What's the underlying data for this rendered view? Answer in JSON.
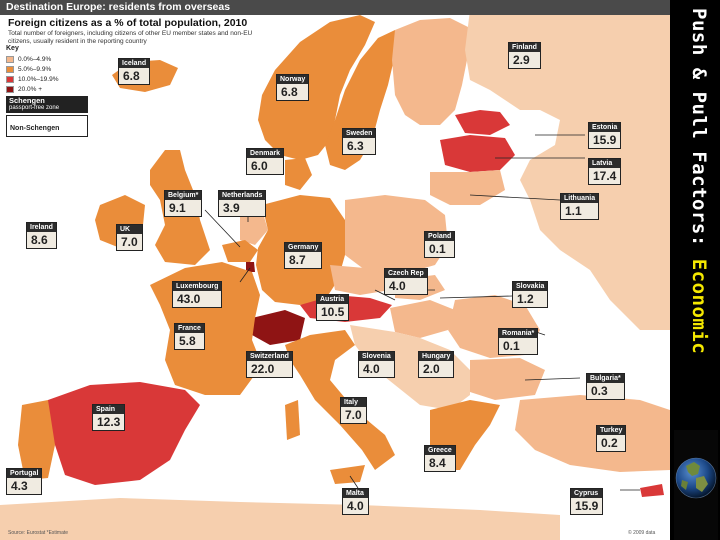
{
  "header": "Destination Europe: residents from overseas",
  "title": "Foreign citizens as a % of total population, 2010",
  "subtitle": "Total number of foreigners, including citizens of other EU member states and non-EU citizens, usually resident in the reporting country",
  "legend": {
    "title": "Key",
    "items": [
      {
        "label": "0.0%–4.9%",
        "color": "#f4b88d"
      },
      {
        "label": "5.0%–9.9%",
        "color": "#ea8d3a"
      },
      {
        "label": "10.0%–19.9%",
        "color": "#d93838"
      },
      {
        "label": "20.0% +",
        "color": "#8f1414"
      }
    ],
    "schengen_label": "Schengen",
    "schengen_sub": "passport-free zone",
    "non_schengen_label": "Non-Schengen"
  },
  "countries": {
    "finland": {
      "name": "Finland",
      "value": "2.9"
    },
    "iceland": {
      "name": "Iceland",
      "value": "6.8"
    },
    "norway": {
      "name": "Norway",
      "value": "6.8"
    },
    "estonia": {
      "name": "Estonia",
      "value": "15.9"
    },
    "sweden": {
      "name": "Sweden",
      "value": "6.3"
    },
    "denmark": {
      "name": "Denmark",
      "value": "6.0"
    },
    "latvia": {
      "name": "Latvia",
      "value": "17.4"
    },
    "belgium": {
      "name": "Belgium*",
      "value": "9.1"
    },
    "netherlands": {
      "name": "Netherlands",
      "value": "3.9"
    },
    "lithuania": {
      "name": "Lithuania",
      "value": "1.1"
    },
    "ireland": {
      "name": "Ireland",
      "value": "8.6"
    },
    "uk": {
      "name": "UK",
      "value": "7.0"
    },
    "poland": {
      "name": "Poland",
      "value": "0.1"
    },
    "germany": {
      "name": "Germany",
      "value": "8.7"
    },
    "czech": {
      "name": "Czech Rep",
      "value": "4.0"
    },
    "luxembourg": {
      "name": "Luxembourg",
      "value": "43.0"
    },
    "slovakia": {
      "name": "Slovakia",
      "value": "1.2"
    },
    "austria": {
      "name": "Austria",
      "value": "10.5"
    },
    "france": {
      "name": "France",
      "value": "5.8"
    },
    "romania": {
      "name": "Romania*",
      "value": "0.1"
    },
    "switzerland": {
      "name": "Switzerland",
      "value": "22.0"
    },
    "slovenia": {
      "name": "Slovenia",
      "value": "4.0"
    },
    "hungary": {
      "name": "Hungary",
      "value": "2.0"
    },
    "bulgaria": {
      "name": "Bulgaria*",
      "value": "0.3"
    },
    "spain": {
      "name": "Spain",
      "value": "12.3"
    },
    "italy": {
      "name": "Italy",
      "value": "7.0"
    },
    "turkey": {
      "name": "Turkey",
      "value": "0.2"
    },
    "greece": {
      "name": "Greece",
      "value": "8.4"
    },
    "portugal": {
      "name": "Portugal",
      "value": "4.3"
    },
    "malta": {
      "name": "Malta",
      "value": "4.0"
    },
    "cyprus": {
      "name": "Cyprus",
      "value": "15.9"
    }
  },
  "source": "Source: Eurostat  *Estimate",
  "copyright": "© 2009 data",
  "slide_title": {
    "main": "Push & Pull Factors: ",
    "accent": "Economic"
  },
  "colors": {
    "sea": "#ffffff",
    "band_0_5": "#f4b88d",
    "band_5_10": "#ea8d3a",
    "band_10_20": "#d93838",
    "band_20_plus": "#8f1414",
    "non_eu": "#f6cfae",
    "slide_bg": "#000000",
    "accent": "#f5e800"
  },
  "icons": [
    "globe-icon"
  ]
}
